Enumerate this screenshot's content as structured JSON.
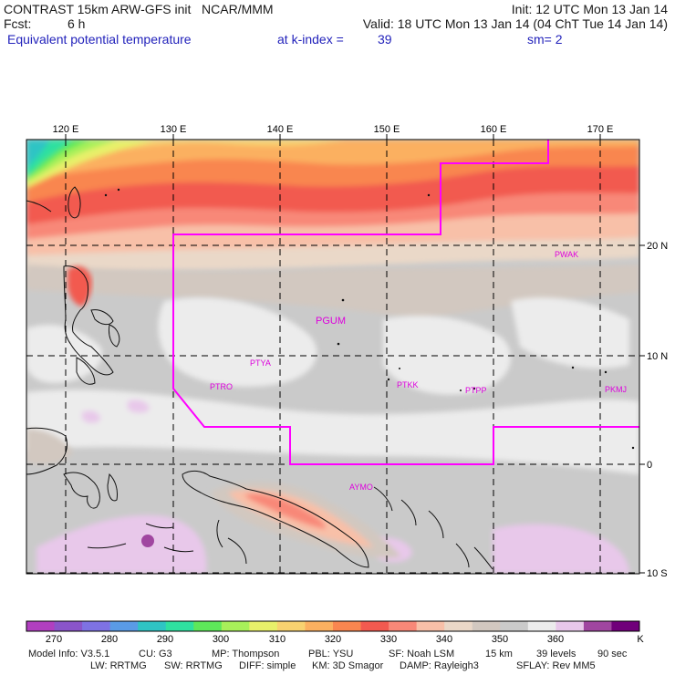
{
  "header": {
    "model_title": "CONTRAST 15km ARW-GFS init   NCAR/MMM",
    "init": "Init: 12 UTC Mon 13 Jan 14",
    "fcst_label": "Fcst:",
    "fcst_value": "6 h",
    "valid": "Valid: 18 UTC Mon 13 Jan 14 (04 ChT Tue 14 Jan 14)",
    "field": "Equivalent potential temperature",
    "level_label": "at k-index =",
    "level_value": "39",
    "smoothing": "sm= 2"
  },
  "map": {
    "lon_labels": [
      "120 E",
      "130 E",
      "140 E",
      "150 E",
      "160 E",
      "170 E"
    ],
    "lat_labels": [
      "20 N",
      "10 N",
      "0",
      "10 S"
    ],
    "stations": [
      "PWAK",
      "PGUM",
      "PTYA",
      "PTRO",
      "PTKK",
      "PTPP",
      "PKMJ",
      "AYMO"
    ],
    "colors": {
      "domain_box": "#ff00ff",
      "station_label": "#dd00dd",
      "grid": "#000000"
    }
  },
  "colorbar": {
    "unit": "K",
    "tick_labels": [
      "270",
      "280",
      "290",
      "300",
      "310",
      "320",
      "330",
      "340",
      "350",
      "360"
    ],
    "colors": [
      "#b13fc0",
      "#8a55c9",
      "#7e72e3",
      "#5a9be6",
      "#2fc4c4",
      "#2fe0a0",
      "#5ee85a",
      "#a8f05a",
      "#e8f06a",
      "#f8d270",
      "#fbb060",
      "#f98650",
      "#f25a50",
      "#f88878",
      "#f8c0a8",
      "#ead8c8",
      "#d2c8c0",
      "#cacaca",
      "#ececec",
      "#e8c8ea",
      "#a046a0",
      "#70007a"
    ]
  },
  "model_info": {
    "line1": [
      "Model Info: V3.5.1",
      "CU: G3",
      "MP: Thompson",
      "PBL: YSU",
      "SF: Noah LSM",
      "15 km",
      "39 levels",
      "90 sec"
    ],
    "line2": [
      "LW: RRTMG",
      "SW: RRTMG",
      "DIFF: simple",
      "KM: 3D Smagor",
      "DAMP: Rayleigh3",
      "SFLAY: Rev MM5"
    ]
  }
}
